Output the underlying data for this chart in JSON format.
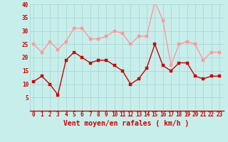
{
  "title": "",
  "xlabel": "Vent moyen/en rafales ( km/h )",
  "ylabel": "",
  "background_color": "#c8eeec",
  "grid_color": "#a8d8d6",
  "line_color_dark": "#cc0000",
  "line_color_light": "#ff9999",
  "x": [
    0,
    1,
    2,
    3,
    4,
    5,
    6,
    7,
    8,
    9,
    10,
    11,
    12,
    13,
    14,
    15,
    16,
    17,
    18,
    19,
    20,
    21,
    22,
    23
  ],
  "y_mean": [
    11,
    13,
    10,
    6,
    19,
    22,
    20,
    18,
    19,
    19,
    17,
    15,
    10,
    12,
    16,
    25,
    17,
    15,
    18,
    18,
    13,
    12,
    13,
    13
  ],
  "y_gust": [
    25,
    22,
    26,
    23,
    26,
    31,
    31,
    27,
    27,
    28,
    30,
    29,
    25,
    28,
    28,
    41,
    34,
    17,
    25,
    26,
    25,
    19,
    22,
    22
  ],
  "ylim": [
    0,
    40
  ],
  "yticks": [
    5,
    10,
    15,
    20,
    25,
    30,
    35,
    40
  ],
  "marker_size": 2.5,
  "line_width": 1.0,
  "xlabel_color": "#cc0000",
  "xlabel_fontsize": 7,
  "tick_color": "#cc0000",
  "tick_fontsize": 5.5
}
